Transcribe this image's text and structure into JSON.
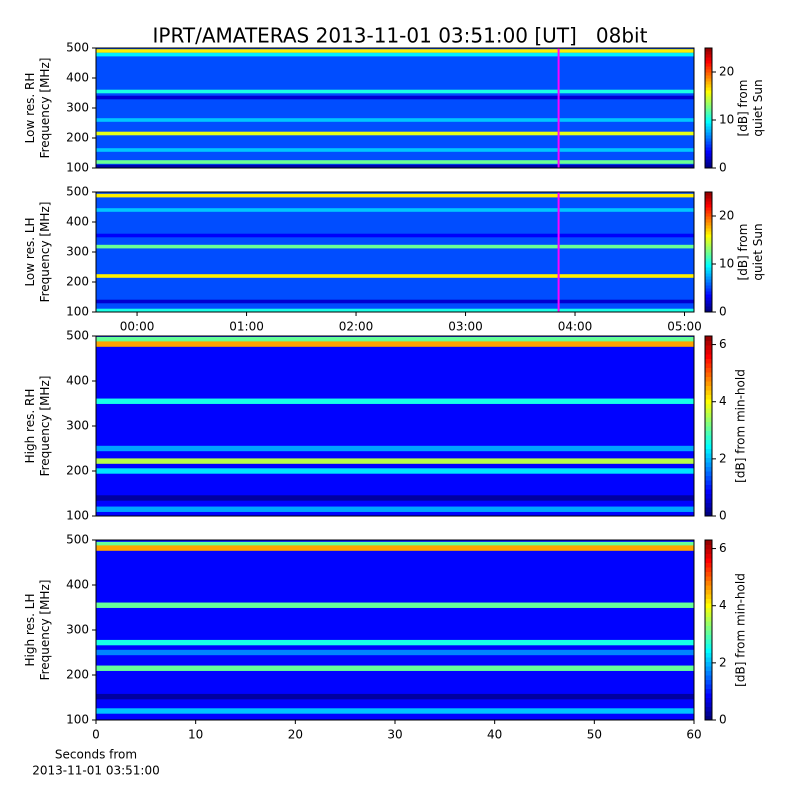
{
  "chart_data": [
    {
      "type": "heatmap",
      "title": "IPRT/AMATERAS 2013-11-01 03:51:00 [UT]   08bit",
      "ylabel": [
        "Low res. RH",
        "Frequency [MHz]"
      ],
      "ylim": [
        100,
        500
      ],
      "yticks": [
        100,
        200,
        300,
        400,
        500
      ],
      "xlim": [
        -22.5,
        305.2
      ],
      "clabel": [
        "[dB] from",
        "quiet Sun"
      ],
      "clim": [
        0,
        25
      ],
      "cticks": [
        0,
        10,
        20
      ],
      "background_level": 5,
      "cursor": 231,
      "cursor_color": "#ff00ff",
      "bands": [
        {
          "freq": 490,
          "level": 16
        },
        {
          "freq": 478,
          "level": 9
        },
        {
          "freq": 355,
          "level": 10
        },
        {
          "freq": 335,
          "level": 2
        },
        {
          "freq": 215,
          "level": 15
        },
        {
          "freq": 260,
          "level": 8
        },
        {
          "freq": 160,
          "level": 8
        },
        {
          "freq": 120,
          "level": 12
        },
        {
          "freq": 105,
          "level": 1
        }
      ]
    },
    {
      "type": "heatmap",
      "ylabel": [
        "Low res. LH",
        "Frequency [MHz]"
      ],
      "ylim": [
        100,
        500
      ],
      "yticks": [
        100,
        200,
        300,
        400,
        500
      ],
      "xlim": [
        -22.5,
        305.2
      ],
      "xticks": [
        {
          "value": 0,
          "label": "00:00"
        },
        {
          "value": 60,
          "label": "01:00"
        },
        {
          "value": 120,
          "label": "02:00"
        },
        {
          "value": 180,
          "label": "03:00"
        },
        {
          "value": 240,
          "label": "04:00"
        },
        {
          "value": 300,
          "label": "05:00"
        }
      ],
      "clabel": [
        "[dB] from",
        "quiet Sun"
      ],
      "clim": [
        0,
        25
      ],
      "cticks": [
        0,
        10,
        20
      ],
      "background_level": 5,
      "cursor": 231,
      "cursor_color": "#ff00ff",
      "bands": [
        {
          "freq": 488,
          "level": 16
        },
        {
          "freq": 440,
          "level": 8
        },
        {
          "freq": 355,
          "level": 3
        },
        {
          "freq": 318,
          "level": 12
        },
        {
          "freq": 220,
          "level": 16
        },
        {
          "freq": 135,
          "level": 2
        },
        {
          "freq": 105,
          "level": 10
        }
      ]
    },
    {
      "type": "heatmap",
      "ylabel": [
        "High res. RH",
        "Frequency [MHz]"
      ],
      "ylim": [
        100,
        500
      ],
      "yticks": [
        100,
        200,
        300,
        400,
        500
      ],
      "xlim": [
        0,
        60
      ],
      "clabel": [
        "[dB] from min-hold"
      ],
      "clim": [
        0,
        6.3
      ],
      "cticks": [
        0,
        2,
        4,
        6
      ],
      "background_level": 0.8,
      "bands": [
        {
          "freq": 492,
          "level": 3
        },
        {
          "freq": 482,
          "level": 4.5
        },
        {
          "freq": 355,
          "level": 2.5
        },
        {
          "freq": 250,
          "level": 1.8
        },
        {
          "freq": 222,
          "level": 3.5
        },
        {
          "freq": 200,
          "level": 2.2
        },
        {
          "freq": 140,
          "level": 0.2
        },
        {
          "freq": 115,
          "level": 1.8
        }
      ]
    },
    {
      "type": "heatmap",
      "ylabel": [
        "High res. LH",
        "Frequency [MHz]"
      ],
      "ylim": [
        100,
        500
      ],
      "yticks": [
        100,
        200,
        300,
        400,
        500
      ],
      "xlim": [
        0,
        60
      ],
      "xticks": [
        0,
        10,
        20,
        30,
        40,
        50,
        60
      ],
      "xlabel": [
        "Seconds from",
        "2013-11-01 03:51:00"
      ],
      "clabel": [
        "[dB] from min-hold"
      ],
      "clim": [
        0,
        6.3
      ],
      "cticks": [
        0,
        2,
        4,
        6
      ],
      "background_level": 0.8,
      "bands": [
        {
          "freq": 490,
          "level": 3
        },
        {
          "freq": 482,
          "level": 4.5
        },
        {
          "freq": 355,
          "level": 3
        },
        {
          "freq": 272,
          "level": 2.5
        },
        {
          "freq": 250,
          "level": 1.6
        },
        {
          "freq": 215,
          "level": 3
        },
        {
          "freq": 152,
          "level": 0.2
        },
        {
          "freq": 120,
          "level": 2
        }
      ]
    }
  ]
}
